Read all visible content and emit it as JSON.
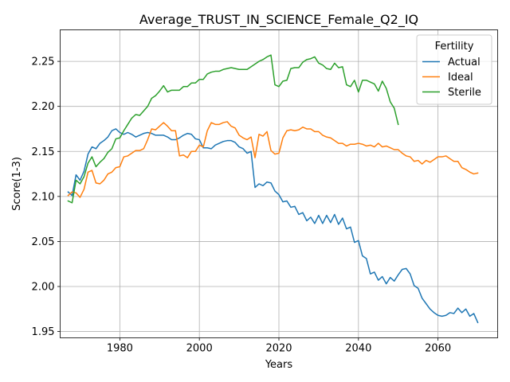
{
  "chart_data": {
    "type": "line",
    "title": "Average_TRUST_IN_SCIENCE_Female_Q2_IQ",
    "xlabel": "Years",
    "ylabel": "Score(1-3)",
    "xlim": [
      1965,
      2075
    ],
    "ylim": [
      1.943,
      2.285
    ],
    "xticks": [
      1980,
      2000,
      2020,
      2040,
      2060
    ],
    "yticks": [
      1.95,
      2.0,
      2.05,
      2.1,
      2.15,
      2.2,
      2.25
    ],
    "xtick_labels": [
      "1980",
      "2000",
      "2020",
      "2040",
      "2060"
    ],
    "ytick_labels": [
      "1.95",
      "2.00",
      "2.05",
      "2.10",
      "2.15",
      "2.20",
      "2.25"
    ],
    "grid": true,
    "legend": {
      "title": "Fertility",
      "placement": "top-right"
    },
    "series": [
      {
        "name": "Actual",
        "color": "#1f77b4",
        "x": [
          1967,
          1968,
          1969,
          1970,
          1971,
          1972,
          1973,
          1974,
          1975,
          1976,
          1977,
          1978,
          1979,
          1980,
          1981,
          1982,
          1983,
          1984,
          1985,
          1986,
          1987,
          1988,
          1989,
          1990,
          1991,
          1992,
          1993,
          1994,
          1995,
          1996,
          1997,
          1998,
          1999,
          2000,
          2001,
          2002,
          2003,
          2004,
          2005,
          2006,
          2007,
          2008,
          2009,
          2010,
          2011,
          2012,
          2013,
          2014,
          2015,
          2016,
          2017,
          2018,
          2019,
          2020,
          2021,
          2022,
          2023,
          2024,
          2025,
          2026,
          2027,
          2028,
          2029,
          2030,
          2031,
          2032,
          2033,
          2034,
          2035,
          2036,
          2037,
          2038,
          2039,
          2040,
          2041,
          2042,
          2043,
          2044,
          2045,
          2046,
          2047,
          2048,
          2049,
          2050,
          2051,
          2052,
          2053,
          2054,
          2055,
          2056,
          2057,
          2058,
          2059,
          2060,
          2061,
          2062,
          2063,
          2064,
          2065,
          2066,
          2067,
          2068,
          2069,
          2070
        ],
        "values": [
          2.105,
          2.101,
          2.124,
          2.118,
          2.128,
          2.147,
          2.155,
          2.153,
          2.159,
          2.162,
          2.166,
          2.173,
          2.175,
          2.171,
          2.169,
          2.171,
          2.169,
          2.166,
          2.168,
          2.17,
          2.171,
          2.17,
          2.168,
          2.168,
          2.168,
          2.166,
          2.163,
          2.163,
          2.165,
          2.168,
          2.17,
          2.169,
          2.164,
          2.163,
          2.154,
          2.154,
          2.153,
          2.157,
          2.159,
          2.161,
          2.162,
          2.162,
          2.16,
          2.155,
          2.153,
          2.148,
          2.15,
          2.11,
          2.114,
          2.112,
          2.116,
          2.115,
          2.106,
          2.102,
          2.094,
          2.095,
          2.088,
          2.089,
          2.08,
          2.082,
          2.073,
          2.077,
          2.07,
          2.079,
          2.07,
          2.079,
          2.071,
          2.08,
          2.069,
          2.076,
          2.064,
          2.066,
          2.049,
          2.051,
          2.034,
          2.031,
          2.014,
          2.016,
          2.007,
          2.011,
          2.003,
          2.01,
          2.006,
          2.013,
          2.019,
          2.02,
          2.014,
          2.001,
          1.998,
          1.987,
          1.981,
          1.975,
          1.971,
          1.968,
          1.967,
          1.968,
          1.971,
          1.97,
          1.976,
          1.971,
          1.975,
          1.967,
          1.97,
          1.96
        ]
      },
      {
        "name": "Ideal",
        "color": "#ff7f0e",
        "x": [
          1967,
          1968,
          1969,
          1970,
          1971,
          1972,
          1973,
          1974,
          1975,
          1976,
          1977,
          1978,
          1979,
          1980,
          1981,
          1982,
          1983,
          1984,
          1985,
          1986,
          1987,
          1988,
          1989,
          1990,
          1991,
          1992,
          1993,
          1994,
          1995,
          1996,
          1997,
          1998,
          1999,
          2000,
          2001,
          2002,
          2003,
          2004,
          2005,
          2006,
          2007,
          2008,
          2009,
          2010,
          2011,
          2012,
          2013,
          2014,
          2015,
          2016,
          2017,
          2018,
          2019,
          2020,
          2021,
          2022,
          2023,
          2024,
          2025,
          2026,
          2027,
          2028,
          2029,
          2030,
          2031,
          2032,
          2033,
          2034,
          2035,
          2036,
          2037,
          2038,
          2039,
          2040,
          2041,
          2042,
          2043,
          2044,
          2045,
          2046,
          2047,
          2048,
          2049,
          2050,
          2051,
          2052,
          2053,
          2054,
          2055,
          2056,
          2057,
          2058,
          2059,
          2060,
          2061,
          2062,
          2063,
          2064,
          2065,
          2066,
          2067,
          2068,
          2069,
          2070
        ],
        "values": [
          2.101,
          2.105,
          2.104,
          2.099,
          2.108,
          2.127,
          2.129,
          2.115,
          2.114,
          2.118,
          2.125,
          2.127,
          2.132,
          2.133,
          2.144,
          2.145,
          2.148,
          2.151,
          2.151,
          2.153,
          2.163,
          2.175,
          2.174,
          2.178,
          2.182,
          2.178,
          2.173,
          2.173,
          2.145,
          2.146,
          2.143,
          2.15,
          2.15,
          2.157,
          2.155,
          2.173,
          2.182,
          2.18,
          2.18,
          2.182,
          2.183,
          2.178,
          2.176,
          2.168,
          2.165,
          2.163,
          2.166,
          2.143,
          2.169,
          2.167,
          2.172,
          2.151,
          2.147,
          2.148,
          2.165,
          2.173,
          2.174,
          2.173,
          2.174,
          2.177,
          2.175,
          2.175,
          2.172,
          2.172,
          2.168,
          2.166,
          2.165,
          2.162,
          2.159,
          2.159,
          2.156,
          2.158,
          2.158,
          2.159,
          2.158,
          2.156,
          2.157,
          2.155,
          2.159,
          2.155,
          2.156,
          2.154,
          2.152,
          2.152,
          2.148,
          2.145,
          2.144,
          2.139,
          2.14,
          2.136,
          2.14,
          2.138,
          2.141,
          2.144,
          2.144,
          2.145,
          2.142,
          2.139,
          2.139,
          2.132,
          2.13,
          2.127,
          2.125,
          2.126
        ]
      },
      {
        "name": "Sterile",
        "color": "#2ca02c",
        "x": [
          1967,
          1968,
          1969,
          1970,
          1971,
          1972,
          1973,
          1974,
          1975,
          1976,
          1977,
          1978,
          1979,
          1980,
          1981,
          1982,
          1983,
          1984,
          1985,
          1986,
          1987,
          1988,
          1989,
          1990,
          1991,
          1992,
          1993,
          1994,
          1995,
          1996,
          1997,
          1998,
          1999,
          2000,
          2001,
          2002,
          2003,
          2004,
          2005,
          2006,
          2007,
          2008,
          2009,
          2010,
          2011,
          2012,
          2013,
          2014,
          2015,
          2016,
          2017,
          2018,
          2019,
          2020,
          2021,
          2022,
          2023,
          2024,
          2025,
          2026,
          2027,
          2028,
          2029,
          2030,
          2031,
          2032,
          2033,
          2034,
          2035,
          2036,
          2037,
          2038,
          2039,
          2040,
          2041,
          2042,
          2043,
          2044,
          2045,
          2046,
          2047,
          2048,
          2049,
          2050
        ],
        "values": [
          2.095,
          2.093,
          2.118,
          2.114,
          2.122,
          2.137,
          2.144,
          2.133,
          2.138,
          2.142,
          2.149,
          2.153,
          2.164,
          2.165,
          2.173,
          2.18,
          2.187,
          2.191,
          2.19,
          2.195,
          2.2,
          2.209,
          2.212,
          2.217,
          2.223,
          2.216,
          2.218,
          2.218,
          2.218,
          2.222,
          2.222,
          2.226,
          2.226,
          2.23,
          2.23,
          2.236,
          2.238,
          2.239,
          2.239,
          2.241,
          2.242,
          2.243,
          2.242,
          2.241,
          2.241,
          2.241,
          2.244,
          2.247,
          2.25,
          2.252,
          2.255,
          2.257,
          2.224,
          2.222,
          2.228,
          2.229,
          2.242,
          2.243,
          2.243,
          2.249,
          2.252,
          2.253,
          2.255,
          2.248,
          2.246,
          2.242,
          2.241,
          2.248,
          2.243,
          2.244,
          2.224,
          2.222,
          2.229,
          2.216,
          2.229,
          2.229,
          2.227,
          2.225,
          2.217,
          2.228,
          2.22,
          2.205,
          2.198,
          2.18
        ]
      }
    ]
  }
}
